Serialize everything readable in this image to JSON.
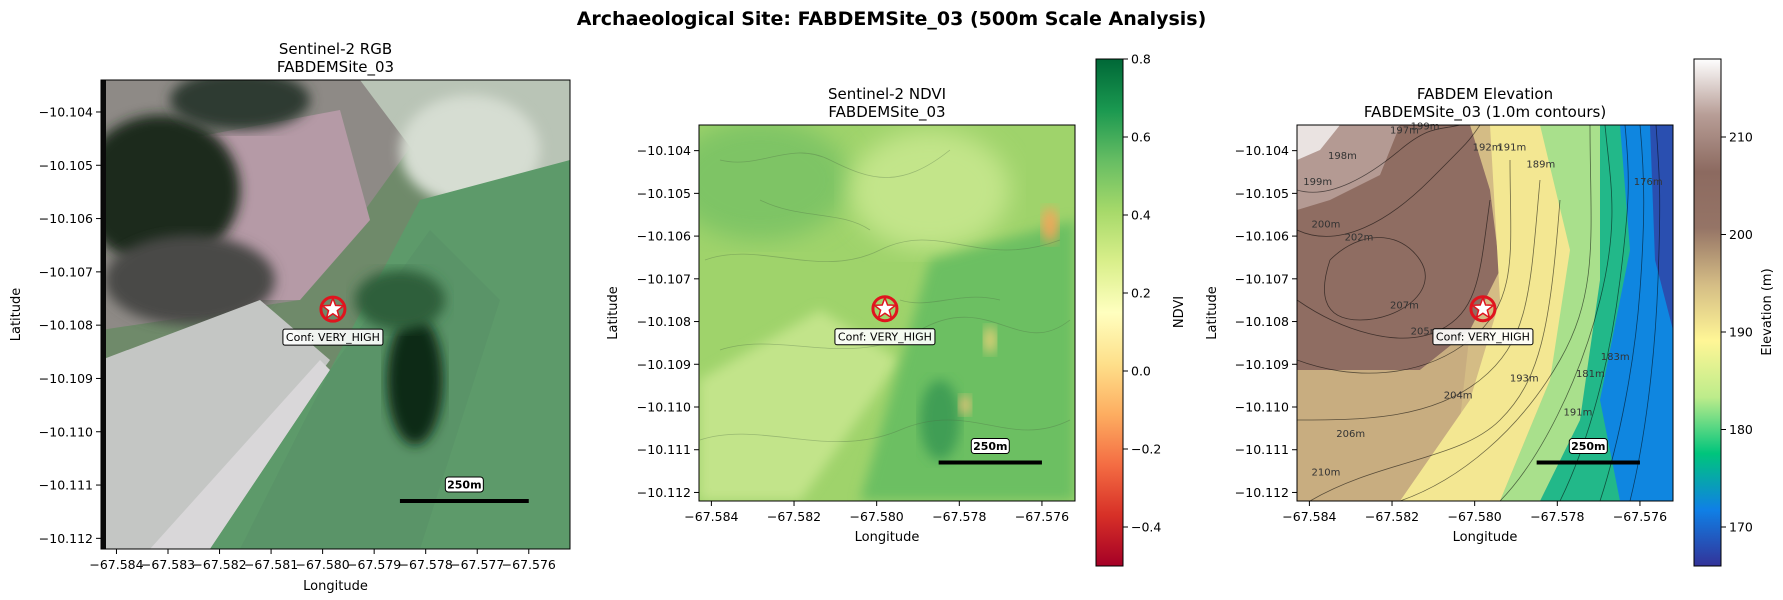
{
  "figure": {
    "suptitle": "Archaeological Site: FABDEMSite_03 (500m Scale Analysis)"
  },
  "colors": {
    "marker_fill": "#ffffff",
    "marker_edge": "#e0141e",
    "scalebar": "#000000"
  },
  "chart_data": [
    {
      "type": "heatmap",
      "title": "Sentinel-2 RGB\nFABDEMSite_03",
      "xlabel": "Longitude",
      "ylabel": "Latitude",
      "xlim": [
        -67.5843,
        -67.5752
      ],
      "ylim": [
        -10.1122,
        -10.1034
      ],
      "xticks": [
        -67.584,
        -67.583,
        -67.582,
        -67.581,
        -67.58,
        -67.579,
        -67.578,
        -67.577,
        -67.576
      ],
      "xtick_labels": [
        "−67.584",
        "−67.583",
        "−67.582",
        "−67.581",
        "−67.580",
        "−67.579",
        "−67.578",
        "−67.577",
        "−67.576"
      ],
      "yticks": [
        -10.104,
        -10.105,
        -10.106,
        -10.107,
        -10.108,
        -10.109,
        -10.11,
        -10.111,
        -10.112
      ],
      "ytick_labels": [
        "−10.104",
        "−10.105",
        "−10.106",
        "−10.107",
        "−10.108",
        "−10.109",
        "−10.110",
        "−10.111",
        "−10.112"
      ],
      "site": {
        "lon": -67.5798,
        "lat": -10.1077,
        "label": "Conf: VERY_HIGH"
      },
      "scalebar": {
        "label": "250m",
        "lon_start": -67.5785,
        "lon_end": -67.576,
        "lat": -10.1113
      }
    },
    {
      "type": "heatmap",
      "title": "Sentinel-2 NDVI\nFABDEMSite_03",
      "xlabel": "Longitude",
      "ylabel": "Latitude",
      "xlim": [
        -67.5843,
        -67.5752
      ],
      "ylim": [
        -10.1122,
        -10.1034
      ],
      "xticks": [
        -67.584,
        -67.582,
        -67.58,
        -67.578,
        -67.576
      ],
      "xtick_labels": [
        "−67.584",
        "−67.582",
        "−67.580",
        "−67.578",
        "−67.576"
      ],
      "yticks": [
        -10.104,
        -10.105,
        -10.106,
        -10.107,
        -10.108,
        -10.109,
        -10.11,
        -10.111,
        -10.112
      ],
      "ytick_labels": [
        "−10.104",
        "−10.105",
        "−10.106",
        "−10.107",
        "−10.108",
        "−10.109",
        "−10.110",
        "−10.111",
        "−10.112"
      ],
      "site": {
        "lon": -67.5798,
        "lat": -10.1077,
        "label": "Conf: VERY_HIGH"
      },
      "scalebar": {
        "label": "250m",
        "lon_start": -67.5785,
        "lon_end": -67.576,
        "lat": -10.1113
      },
      "colorbar": {
        "label": "NDVI",
        "range": [
          -0.5,
          0.8
        ],
        "ticks": [
          0.8,
          0.6,
          0.4,
          0.2,
          0.0,
          -0.2,
          -0.4
        ],
        "tick_labels": [
          "0.8",
          "0.6",
          "0.4",
          "0.2",
          "0.0",
          "−0.2",
          "−0.4"
        ],
        "colormap": "RdYlGn",
        "stops": [
          "#a50026",
          "#d73027",
          "#f46d43",
          "#fdae61",
          "#fee08b",
          "#ffffbf",
          "#d9ef8b",
          "#a6d96a",
          "#66bd63",
          "#1a9850",
          "#006837"
        ]
      }
    },
    {
      "type": "heatmap",
      "title": "FABDEM Elevation\nFABDEMSite_03 (1.0m contours)",
      "xlabel": "Longitude",
      "ylabel": "Latitude",
      "xlim": [
        -67.5843,
        -67.5752
      ],
      "ylim": [
        -10.1122,
        -10.1034
      ],
      "xticks": [
        -67.584,
        -67.582,
        -67.58,
        -67.578,
        -67.576
      ],
      "xtick_labels": [
        "−67.584",
        "−67.582",
        "−67.580",
        "−67.578",
        "−67.576"
      ],
      "yticks": [
        -10.104,
        -10.105,
        -10.106,
        -10.107,
        -10.108,
        -10.109,
        -10.11,
        -10.111,
        -10.112
      ],
      "ytick_labels": [
        "−10.104",
        "−10.105",
        "−10.106",
        "−10.107",
        "−10.108",
        "−10.109",
        "−10.110",
        "−10.111",
        "−10.112"
      ],
      "site": {
        "lon": -67.5798,
        "lat": -10.1077,
        "label": "Conf: VERY_HIGH"
      },
      "scalebar": {
        "label": "250m",
        "lon_start": -67.5785,
        "lon_end": -67.576,
        "lat": -10.1113
      },
      "contour_labels": [
        {
          "text": "197m",
          "lon": -67.5817,
          "lat": -10.1036
        },
        {
          "text": "199m",
          "lon": -67.5812,
          "lat": -10.1035
        },
        {
          "text": "198m",
          "lon": -67.5832,
          "lat": -10.1042
        },
        {
          "text": "199m",
          "lon": -67.5838,
          "lat": -10.1048
        },
        {
          "text": "200m",
          "lon": -67.5836,
          "lat": -10.1058
        },
        {
          "text": "202m",
          "lon": -67.5828,
          "lat": -10.1061
        },
        {
          "text": "207m",
          "lon": -67.5817,
          "lat": -10.1077
        },
        {
          "text": "205m",
          "lon": -67.5812,
          "lat": -10.1083
        },
        {
          "text": "204m",
          "lon": -67.5804,
          "lat": -10.1098
        },
        {
          "text": "206m",
          "lon": -67.583,
          "lat": -10.1107
        },
        {
          "text": "210m",
          "lon": -67.5836,
          "lat": -10.1116
        },
        {
          "text": "192m",
          "lon": -67.5797,
          "lat": -10.104
        },
        {
          "text": "191m",
          "lon": -67.5791,
          "lat": -10.104
        },
        {
          "text": "189m",
          "lon": -67.5784,
          "lat": -10.1044
        },
        {
          "text": "193m",
          "lon": -67.5788,
          "lat": -10.1094
        },
        {
          "text": "191m",
          "lon": -67.5775,
          "lat": -10.1102
        },
        {
          "text": "183m",
          "lon": -67.5766,
          "lat": -10.1089
        },
        {
          "text": "181m",
          "lon": -67.5772,
          "lat": -10.1093
        },
        {
          "text": "176m",
          "lon": -67.5758,
          "lat": -10.1048
        }
      ],
      "colorbar": {
        "label": "Elevation (m)",
        "range": [
          166,
          218
        ],
        "ticks": [
          210,
          200,
          190,
          180,
          170
        ],
        "tick_labels": [
          "210",
          "200",
          "190",
          "180",
          "170"
        ],
        "colormap": "terrain",
        "stops": [
          "#333399",
          "#0f80e6",
          "#00c57c",
          "#bdec8b",
          "#fff696",
          "#d4bc85",
          "#957466",
          "#8c6a60",
          "#b79d96",
          "#fefefe"
        ]
      }
    }
  ]
}
